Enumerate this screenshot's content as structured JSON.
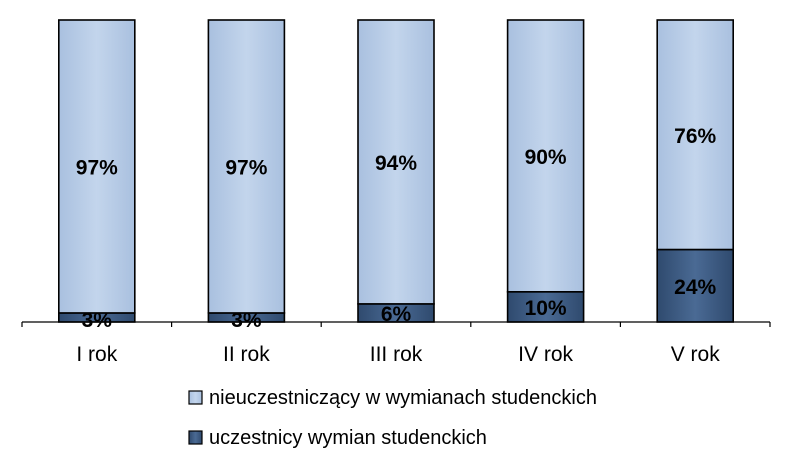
{
  "chart_data": {
    "type": "bar",
    "stacked": true,
    "percent": true,
    "categories": [
      "I rok",
      "II rok",
      "III rok",
      "IV rok",
      "V rok"
    ],
    "series": [
      {
        "name": "uczestnicy wymian studenckich",
        "values": [
          3,
          3,
          6,
          10,
          24
        ],
        "labels": [
          "3%",
          "3%",
          "6%",
          "10%",
          "24%"
        ],
        "color": "#3d5a80"
      },
      {
        "name": "nieuczestniczący w wymianach studenckich",
        "values": [
          97,
          97,
          94,
          90,
          76
        ],
        "labels": [
          "97%",
          "97%",
          "94%",
          "90%",
          "76%"
        ],
        "color": "#b9cde5"
      }
    ],
    "ylim": [
      0,
      100
    ],
    "grid": false,
    "legend_position": "bottom",
    "legend_order": [
      "nieuczestniczący w wymianach studenckich",
      "uczestnicy wymian studenckich"
    ],
    "title": "",
    "xlabel": "",
    "ylabel": ""
  }
}
